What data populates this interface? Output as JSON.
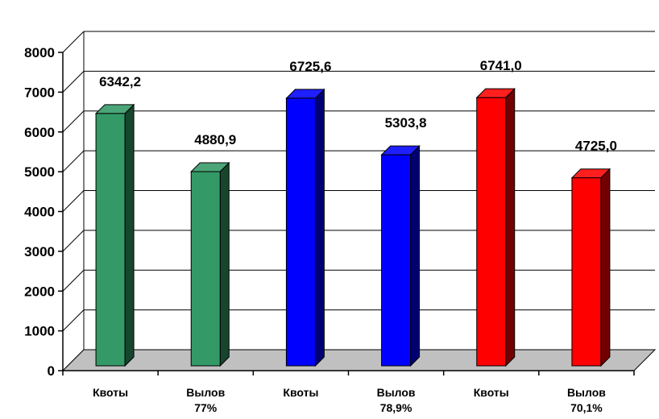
{
  "chart_data": {
    "type": "bar",
    "title": "",
    "xlabel": "",
    "ylabel": "",
    "ylim": [
      0,
      8000
    ],
    "yticks": [
      "0",
      "1000",
      "2000",
      "3000",
      "4000",
      "5000",
      "6000",
      "7000",
      "8000"
    ],
    "grid": true,
    "three_d": true,
    "groups": [
      {
        "color": "#339966",
        "bars": [
          {
            "label_line1": "Квоты",
            "label_line2": "",
            "value": 6342.2,
            "value_label": "6342,2"
          },
          {
            "label_line1": "Вылов",
            "label_line2": "77%",
            "value": 4880.9,
            "value_label": "4880,9"
          }
        ]
      },
      {
        "color": "#0000ff",
        "bars": [
          {
            "label_line1": "Квоты",
            "label_line2": "",
            "value": 6725.6,
            "value_label": "6725,6"
          },
          {
            "label_line1": "Вылов",
            "label_line2": "78,9%",
            "value": 5303.8,
            "value_label": "5303,8"
          }
        ]
      },
      {
        "color": "#ff0000",
        "bars": [
          {
            "label_line1": "Квоты",
            "label_line2": "",
            "value": 6741.0,
            "value_label": "6741,0"
          },
          {
            "label_line1": "Вылов",
            "label_line2": "70,1%",
            "value": 4725.0,
            "value_label": "4725,0"
          }
        ]
      }
    ],
    "colors": {
      "floor": "#c0c0c0",
      "grid": "#000000"
    }
  }
}
